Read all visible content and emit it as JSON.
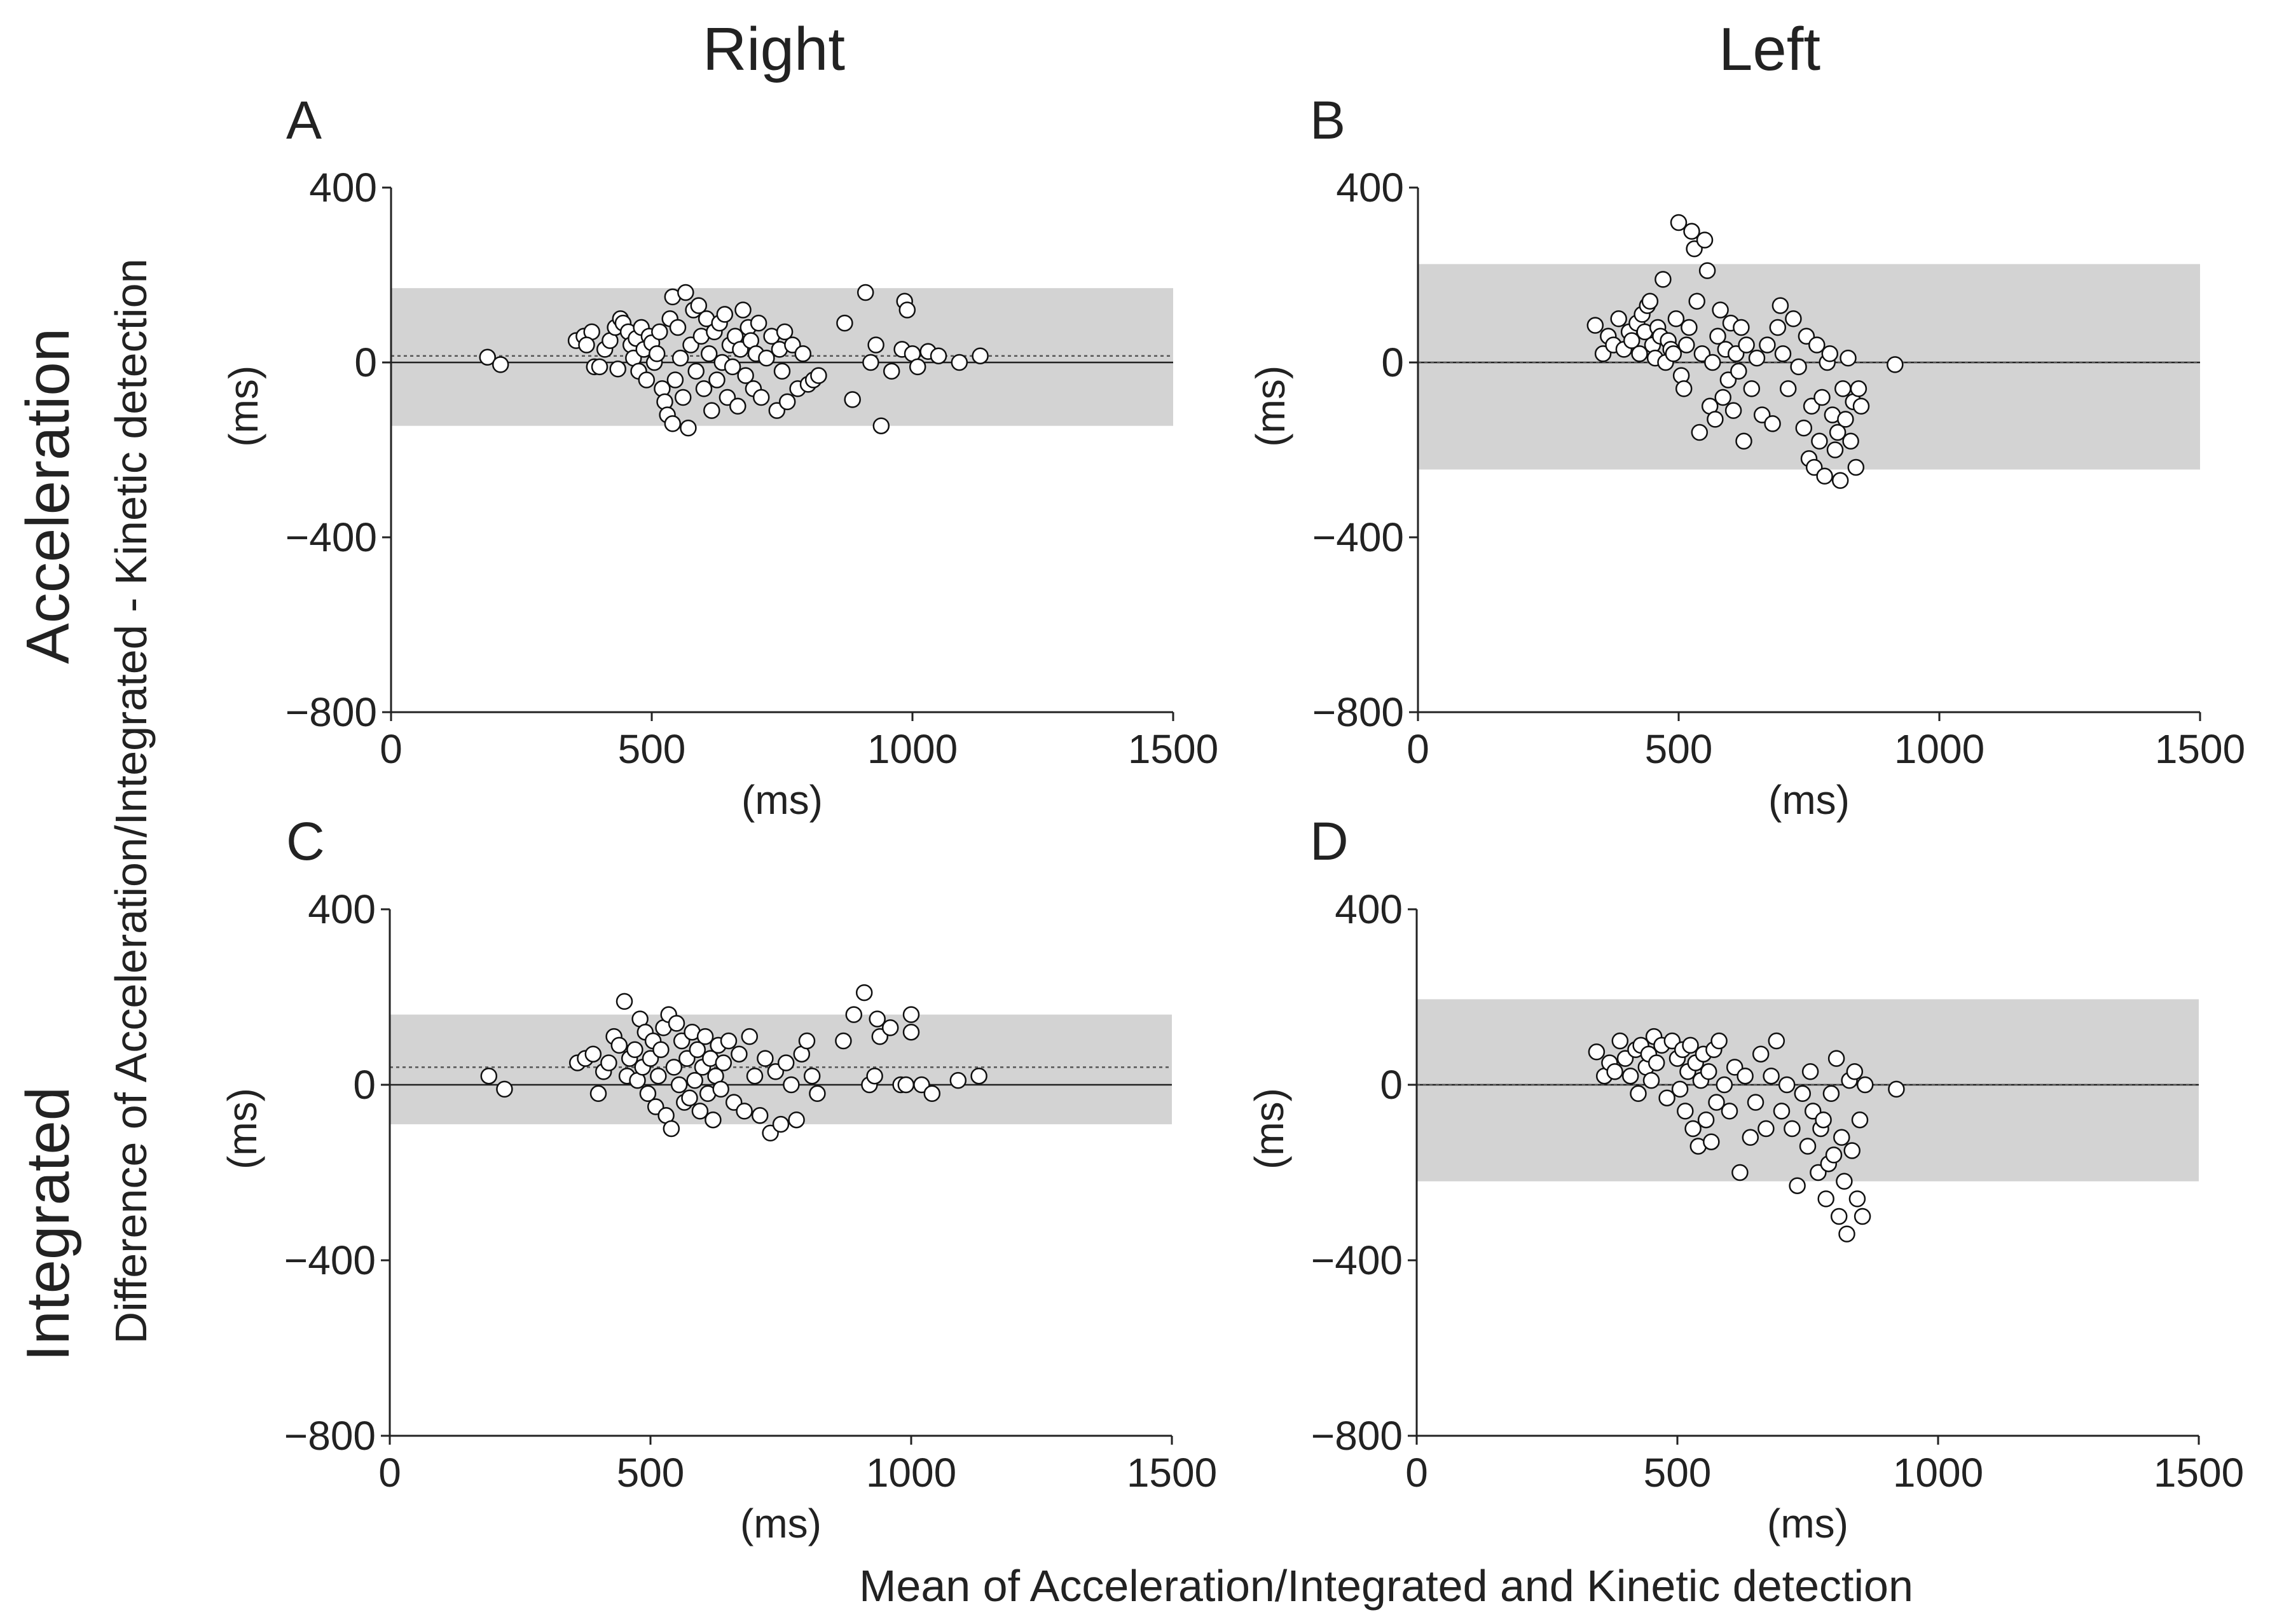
{
  "figure": {
    "column_titles": [
      "Right",
      "Left"
    ],
    "row_titles": [
      "Acceleration",
      "Integrated"
    ],
    "y_axis_label": "Difference of Acceleration/Integrated - Kinetic detection",
    "x_axis_label": "Mean of Acceleration/Integrated and Kinetic detection"
  },
  "chart_data": [
    {
      "panel": "A",
      "type": "scatter",
      "row": "Acceleration",
      "column": "Right",
      "xlabel": "(ms)",
      "ylabel": "(ms)",
      "xlim": [
        0,
        1500
      ],
      "ylim": [
        -800,
        400
      ],
      "xticks": [
        0,
        500,
        1000,
        1500
      ],
      "yticks": [
        400,
        0,
        -400,
        -800
      ],
      "ytick_labels": [
        "400",
        "0",
        "−400",
        "−800"
      ],
      "mean_difference": 0,
      "dotted_line": 15,
      "limits_of_agreement": [
        -145,
        170
      ],
      "points": [
        [
          185,
          12
        ],
        [
          210,
          -5
        ],
        [
          355,
          50
        ],
        [
          370,
          60
        ],
        [
          385,
          70
        ],
        [
          375,
          40
        ],
        [
          390,
          -10
        ],
        [
          400,
          -10
        ],
        [
          410,
          30
        ],
        [
          420,
          50
        ],
        [
          430,
          80
        ],
        [
          440,
          100
        ],
        [
          445,
          90
        ],
        [
          435,
          -15
        ],
        [
          455,
          70
        ],
        [
          460,
          40
        ],
        [
          465,
          10
        ],
        [
          470,
          55
        ],
        [
          475,
          -20
        ],
        [
          480,
          80
        ],
        [
          485,
          30
        ],
        [
          490,
          -40
        ],
        [
          495,
          60
        ],
        [
          500,
          45
        ],
        [
          505,
          0
        ],
        [
          510,
          20
        ],
        [
          515,
          70
        ],
        [
          520,
          -60
        ],
        [
          525,
          -90
        ],
        [
          530,
          -120
        ],
        [
          535,
          100
        ],
        [
          540,
          150
        ],
        [
          540,
          -140
        ],
        [
          545,
          -40
        ],
        [
          550,
          80
        ],
        [
          555,
          10
        ],
        [
          560,
          -80
        ],
        [
          565,
          160
        ],
        [
          570,
          -150
        ],
        [
          575,
          40
        ],
        [
          580,
          120
        ],
        [
          585,
          -20
        ],
        [
          590,
          130
        ],
        [
          595,
          60
        ],
        [
          600,
          -60
        ],
        [
          605,
          100
        ],
        [
          610,
          20
        ],
        [
          615,
          -110
        ],
        [
          620,
          70
        ],
        [
          625,
          -40
        ],
        [
          630,
          90
        ],
        [
          635,
          0
        ],
        [
          640,
          110
        ],
        [
          645,
          -80
        ],
        [
          650,
          40
        ],
        [
          655,
          -10
        ],
        [
          660,
          60
        ],
        [
          665,
          -100
        ],
        [
          670,
          30
        ],
        [
          675,
          120
        ],
        [
          680,
          -30
        ],
        [
          685,
          80
        ],
        [
          690,
          50
        ],
        [
          695,
          -60
        ],
        [
          700,
          20
        ],
        [
          705,
          90
        ],
        [
          710,
          -80
        ],
        [
          720,
          10
        ],
        [
          730,
          60
        ],
        [
          740,
          -110
        ],
        [
          745,
          30
        ],
        [
          750,
          -20
        ],
        [
          755,
          70
        ],
        [
          760,
          -90
        ],
        [
          770,
          40
        ],
        [
          780,
          -60
        ],
        [
          790,
          20
        ],
        [
          800,
          -50
        ],
        [
          810,
          -40
        ],
        [
          820,
          -30
        ],
        [
          870,
          90
        ],
        [
          885,
          -85
        ],
        [
          910,
          160
        ],
        [
          920,
          0
        ],
        [
          930,
          40
        ],
        [
          940,
          -145
        ],
        [
          960,
          -20
        ],
        [
          980,
          30
        ],
        [
          985,
          140
        ],
        [
          990,
          120
        ],
        [
          1000,
          20
        ],
        [
          1010,
          -10
        ],
        [
          1030,
          25
        ],
        [
          1050,
          15
        ],
        [
          1090,
          0
        ],
        [
          1130,
          15
        ]
      ]
    },
    {
      "panel": "B",
      "type": "scatter",
      "row": "Acceleration",
      "column": "Left",
      "xlabel": "(ms)",
      "ylabel": "(ms)",
      "xlim": [
        0,
        1500
      ],
      "ylim": [
        -800,
        400
      ],
      "xticks": [
        0,
        500,
        1000,
        1500
      ],
      "yticks": [
        400,
        0,
        -400,
        -800
      ],
      "ytick_labels": [
        "400",
        "0",
        "−400",
        "−800"
      ],
      "mean_difference": 0,
      "dotted_line": 0,
      "limits_of_agreement": [
        -245,
        225
      ],
      "points": [
        [
          340,
          85
        ],
        [
          355,
          20
        ],
        [
          365,
          60
        ],
        [
          375,
          40
        ],
        [
          385,
          100
        ],
        [
          395,
          30
        ],
        [
          405,
          70
        ],
        [
          410,
          50
        ],
        [
          420,
          90
        ],
        [
          425,
          20
        ],
        [
          430,
          110
        ],
        [
          435,
          70
        ],
        [
          440,
          130
        ],
        [
          445,
          140
        ],
        [
          450,
          40
        ],
        [
          455,
          10
        ],
        [
          460,
          80
        ],
        [
          465,
          60
        ],
        [
          470,
          190
        ],
        [
          475,
          0
        ],
        [
          480,
          50
        ],
        [
          485,
          30
        ],
        [
          490,
          20
        ],
        [
          495,
          100
        ],
        [
          500,
          320
        ],
        [
          505,
          -30
        ],
        [
          510,
          -60
        ],
        [
          515,
          40
        ],
        [
          520,
          80
        ],
        [
          525,
          300
        ],
        [
          530,
          260
        ],
        [
          535,
          140
        ],
        [
          540,
          -160
        ],
        [
          545,
          20
        ],
        [
          550,
          280
        ],
        [
          555,
          210
        ],
        [
          560,
          -100
        ],
        [
          565,
          0
        ],
        [
          570,
          -130
        ],
        [
          575,
          60
        ],
        [
          580,
          120
        ],
        [
          585,
          -80
        ],
        [
          590,
          30
        ],
        [
          595,
          -40
        ],
        [
          600,
          90
        ],
        [
          605,
          -110
        ],
        [
          610,
          20
        ],
        [
          615,
          -20
        ],
        [
          620,
          80
        ],
        [
          625,
          -180
        ],
        [
          630,
          40
        ],
        [
          640,
          -60
        ],
        [
          650,
          10
        ],
        [
          660,
          -120
        ],
        [
          670,
          40
        ],
        [
          680,
          -140
        ],
        [
          690,
          80
        ],
        [
          695,
          130
        ],
        [
          700,
          20
        ],
        [
          710,
          -60
        ],
        [
          720,
          100
        ],
        [
          730,
          -10
        ],
        [
          740,
          -150
        ],
        [
          745,
          60
        ],
        [
          750,
          -220
        ],
        [
          755,
          -100
        ],
        [
          760,
          -240
        ],
        [
          765,
          40
        ],
        [
          770,
          -180
        ],
        [
          775,
          -80
        ],
        [
          780,
          -260
        ],
        [
          785,
          0
        ],
        [
          790,
          20
        ],
        [
          795,
          -120
        ],
        [
          800,
          -200
        ],
        [
          805,
          -160
        ],
        [
          810,
          -270
        ],
        [
          815,
          -60
        ],
        [
          820,
          -130
        ],
        [
          825,
          10
        ],
        [
          830,
          -180
        ],
        [
          835,
          -90
        ],
        [
          840,
          -240
        ],
        [
          845,
          -60
        ],
        [
          850,
          -100
        ],
        [
          915,
          -5
        ]
      ]
    },
    {
      "panel": "C",
      "type": "scatter",
      "row": "Integrated",
      "column": "Right",
      "xlabel": "(ms)",
      "ylabel": "(ms)",
      "xlim": [
        0,
        1500
      ],
      "ylim": [
        -800,
        400
      ],
      "xticks": [
        0,
        500,
        1000,
        1500
      ],
      "yticks": [
        400,
        0,
        -400,
        -800
      ],
      "ytick_labels": [
        "400",
        "0",
        "−400",
        "−800"
      ],
      "mean_difference": 0,
      "dotted_line": 40,
      "limits_of_agreement": [
        -90,
        160
      ],
      "points": [
        [
          190,
          20
        ],
        [
          220,
          -10
        ],
        [
          360,
          50
        ],
        [
          375,
          60
        ],
        [
          390,
          70
        ],
        [
          400,
          -20
        ],
        [
          410,
          30
        ],
        [
          420,
          50
        ],
        [
          430,
          110
        ],
        [
          440,
          90
        ],
        [
          450,
          190
        ],
        [
          455,
          20
        ],
        [
          460,
          60
        ],
        [
          470,
          80
        ],
        [
          475,
          10
        ],
        [
          480,
          150
        ],
        [
          485,
          40
        ],
        [
          490,
          120
        ],
        [
          495,
          -20
        ],
        [
          500,
          60
        ],
        [
          505,
          100
        ],
        [
          510,
          -50
        ],
        [
          515,
          20
        ],
        [
          520,
          80
        ],
        [
          525,
          130
        ],
        [
          530,
          -70
        ],
        [
          535,
          160
        ],
        [
          540,
          -100
        ],
        [
          545,
          40
        ],
        [
          550,
          140
        ],
        [
          555,
          0
        ],
        [
          560,
          100
        ],
        [
          565,
          -40
        ],
        [
          570,
          60
        ],
        [
          575,
          -30
        ],
        [
          580,
          120
        ],
        [
          585,
          10
        ],
        [
          590,
          80
        ],
        [
          595,
          -60
        ],
        [
          600,
          40
        ],
        [
          605,
          110
        ],
        [
          610,
          -20
        ],
        [
          615,
          60
        ],
        [
          620,
          -80
        ],
        [
          625,
          20
        ],
        [
          630,
          90
        ],
        [
          635,
          -10
        ],
        [
          640,
          50
        ],
        [
          650,
          100
        ],
        [
          660,
          -40
        ],
        [
          670,
          70
        ],
        [
          680,
          -60
        ],
        [
          690,
          110
        ],
        [
          700,
          20
        ],
        [
          710,
          -70
        ],
        [
          720,
          60
        ],
        [
          730,
          -110
        ],
        [
          740,
          30
        ],
        [
          750,
          -90
        ],
        [
          760,
          50
        ],
        [
          770,
          0
        ],
        [
          780,
          -80
        ],
        [
          790,
          70
        ],
        [
          800,
          100
        ],
        [
          810,
          20
        ],
        [
          820,
          -20
        ],
        [
          870,
          100
        ],
        [
          890,
          160
        ],
        [
          910,
          210
        ],
        [
          920,
          0
        ],
        [
          930,
          20
        ],
        [
          935,
          150
        ],
        [
          940,
          110
        ],
        [
          960,
          130
        ],
        [
          980,
          0
        ],
        [
          990,
          0
        ],
        [
          1000,
          160
        ],
        [
          1000,
          120
        ],
        [
          1020,
          0
        ],
        [
          1040,
          -20
        ],
        [
          1090,
          10
        ],
        [
          1130,
          20
        ]
      ]
    },
    {
      "panel": "D",
      "type": "scatter",
      "row": "Integrated",
      "column": "Left",
      "xlabel": "(ms)",
      "ylabel": "(ms)",
      "xlim": [
        0,
        1500
      ],
      "ylim": [
        -800,
        400
      ],
      "xticks": [
        0,
        500,
        1000,
        1500
      ],
      "yticks": [
        400,
        0,
        -400,
        -800
      ],
      "ytick_labels": [
        "400",
        "0",
        "−400",
        "−800"
      ],
      "mean_difference": 0,
      "dotted_line": 0,
      "limits_of_agreement": [
        -220,
        195
      ],
      "points": [
        [
          345,
          75
        ],
        [
          360,
          20
        ],
        [
          370,
          50
        ],
        [
          380,
          30
        ],
        [
          390,
          100
        ],
        [
          400,
          60
        ],
        [
          410,
          20
        ],
        [
          420,
          80
        ],
        [
          425,
          -20
        ],
        [
          430,
          90
        ],
        [
          440,
          40
        ],
        [
          445,
          70
        ],
        [
          450,
          10
        ],
        [
          455,
          110
        ],
        [
          460,
          50
        ],
        [
          470,
          90
        ],
        [
          480,
          -30
        ],
        [
          490,
          100
        ],
        [
          500,
          60
        ],
        [
          505,
          -10
        ],
        [
          510,
          80
        ],
        [
          515,
          -60
        ],
        [
          520,
          30
        ],
        [
          525,
          90
        ],
        [
          530,
          -100
        ],
        [
          535,
          50
        ],
        [
          540,
          -140
        ],
        [
          545,
          10
        ],
        [
          550,
          70
        ],
        [
          555,
          -80
        ],
        [
          560,
          30
        ],
        [
          565,
          -130
        ],
        [
          570,
          80
        ],
        [
          575,
          -40
        ],
        [
          580,
          100
        ],
        [
          590,
          0
        ],
        [
          600,
          -60
        ],
        [
          610,
          40
        ],
        [
          620,
          -200
        ],
        [
          630,
          20
        ],
        [
          640,
          -120
        ],
        [
          650,
          -40
        ],
        [
          660,
          70
        ],
        [
          670,
          -100
        ],
        [
          680,
          20
        ],
        [
          690,
          100
        ],
        [
          700,
          -60
        ],
        [
          710,
          0
        ],
        [
          720,
          -100
        ],
        [
          730,
          -230
        ],
        [
          740,
          -20
        ],
        [
          750,
          -140
        ],
        [
          755,
          30
        ],
        [
          760,
          -60
        ],
        [
          770,
          -200
        ],
        [
          775,
          -100
        ],
        [
          780,
          -80
        ],
        [
          785,
          -260
        ],
        [
          790,
          -180
        ],
        [
          795,
          -20
        ],
        [
          800,
          -160
        ],
        [
          805,
          60
        ],
        [
          810,
          -300
        ],
        [
          815,
          -120
        ],
        [
          820,
          -220
        ],
        [
          825,
          -340
        ],
        [
          830,
          10
        ],
        [
          835,
          -150
        ],
        [
          840,
          30
        ],
        [
          845,
          -260
        ],
        [
          850,
          -80
        ],
        [
          855,
          -300
        ],
        [
          860,
          0
        ],
        [
          920,
          -10
        ]
      ]
    }
  ]
}
